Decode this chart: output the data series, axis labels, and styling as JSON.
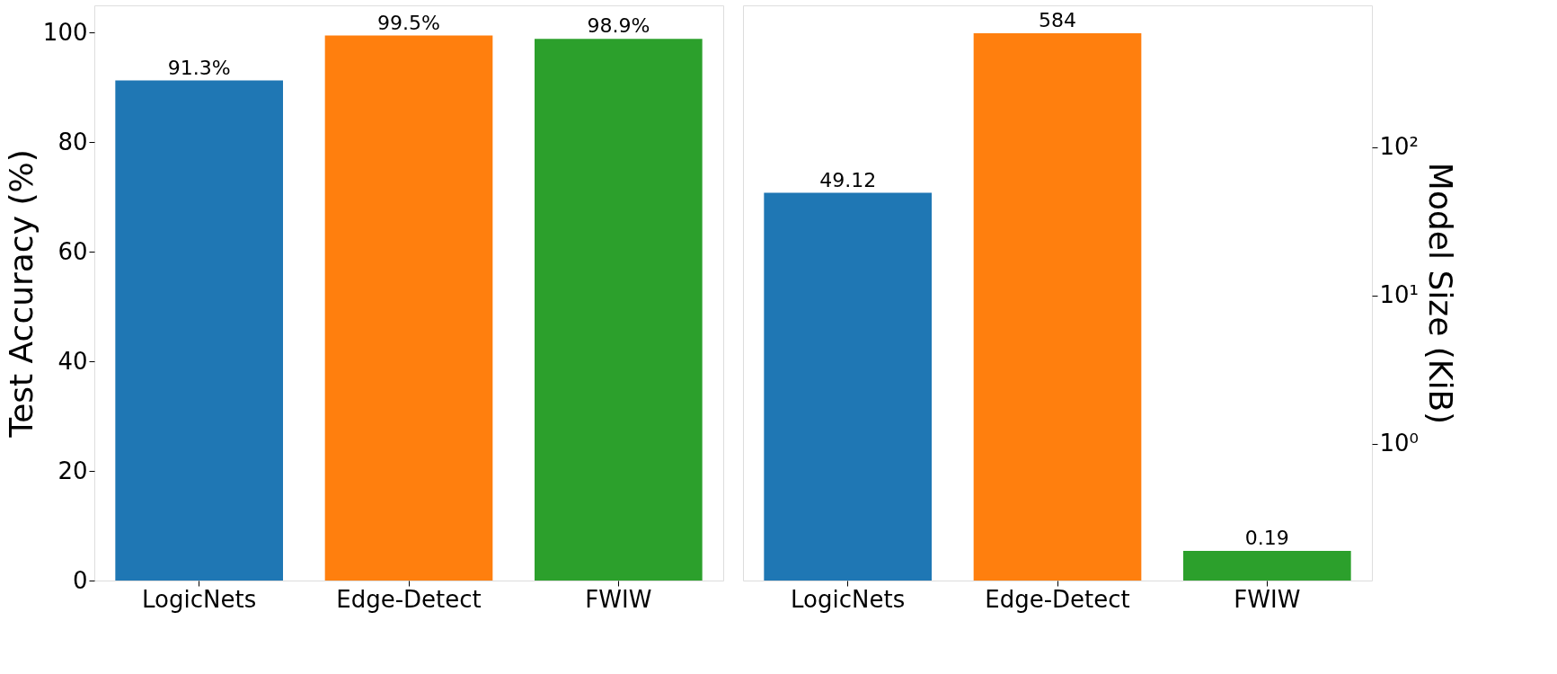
{
  "chart_data": [
    {
      "type": "bar",
      "categories": [
        "LogicNets",
        "Edge-Detect",
        "FWIW"
      ],
      "values": [
        91.3,
        99.5,
        98.9
      ],
      "colors": [
        "#1f77b4",
        "#ff7f0e",
        "#2ca02c"
      ],
      "value_labels": [
        "91.3%",
        "99.5%",
        "98.9%"
      ],
      "ylabel": "Test Accuracy (%)",
      "ylim": [
        0,
        105
      ],
      "yticks": [
        0,
        20,
        40,
        60,
        80,
        100
      ],
      "grid": false
    },
    {
      "type": "bar",
      "categories": [
        "LogicNets",
        "Edge-Detect",
        "FWIW"
      ],
      "series": [
        {
          "axis": "y2",
          "values": [
            49.12,
            584,
            0.19
          ]
        }
      ],
      "colors": [
        "#1f77b4",
        "#ff7f0e",
        "#2ca02c"
      ],
      "data_labels": true,
      "y2label": "Model Size (KiB)",
      "y2lim": [
        0.12,
        900
      ],
      "y2ticks": [
        {
          "value": 1,
          "label": "10⁰"
        },
        {
          "value": 10,
          "label": "10¹"
        },
        {
          "value": 100,
          "label": "10²"
        }
      ],
      "log": "y2",
      "grid": false
    }
  ]
}
